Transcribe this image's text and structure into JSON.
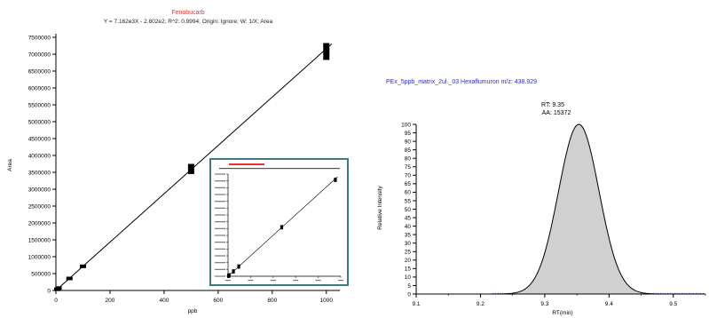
{
  "chart_data": [
    {
      "type": "scatter",
      "title": "Fenobucarb",
      "subtitle": "Y = 7.162e3X - 2.802e2; R^2: 0.9994; Origin: Ignore; W: 1/X; Area",
      "xlabel": "ppb",
      "ylabel": "Area",
      "xlim": [
        0,
        1050
      ],
      "ylim": [
        0,
        7500000
      ],
      "xticks": [
        0,
        200,
        400,
        600,
        800,
        1000
      ],
      "yticks": [
        0,
        500000,
        1000000,
        1500000,
        2000000,
        2500000,
        3000000,
        3500000,
        4000000,
        4500000,
        5000000,
        5500000,
        6000000,
        6500000,
        7000000,
        7500000
      ],
      "x": [
        5,
        10,
        50,
        100,
        500,
        1000
      ],
      "y": [
        35000,
        70000,
        355000,
        715000,
        3600000,
        7080000
      ],
      "yerr": [
        15000,
        20000,
        40000,
        50000,
        150000,
        250000
      ],
      "fit": {
        "slope": 7162,
        "intercept": -280.2
      },
      "grid": false,
      "title_color": "#e8322c",
      "marker_color": "#000000"
    },
    {
      "type": "scatter",
      "role": "inset",
      "x": [
        5,
        10,
        50,
        100,
        500,
        1000
      ],
      "y": [
        35000,
        70000,
        355000,
        715000,
        3600000,
        7080000
      ],
      "border_color": "#3a7a80"
    },
    {
      "type": "area",
      "title": "PEx_5ppb_matrix_2ul._03  Hexaflumuron  m/z: 438.929",
      "annotations": [
        "RT: 9.35",
        "AA: 15372"
      ],
      "xlabel": "RT(min)",
      "ylabel": "Relative Intensity",
      "xlim": [
        9.1,
        9.55
      ],
      "ylim": [
        0,
        100
      ],
      "xticks": [
        9.1,
        9.2,
        9.3,
        9.4,
        9.5
      ],
      "yticks": [
        0,
        5,
        10,
        15,
        20,
        25,
        30,
        35,
        40,
        45,
        50,
        55,
        60,
        65,
        70,
        75,
        80,
        85,
        90,
        95,
        100
      ],
      "peak": {
        "rt": 9.353,
        "height": 100,
        "sigma": 0.0315
      },
      "grid": false,
      "title_color": "#2a2af0",
      "fill_color": "#d0d0d0"
    }
  ]
}
